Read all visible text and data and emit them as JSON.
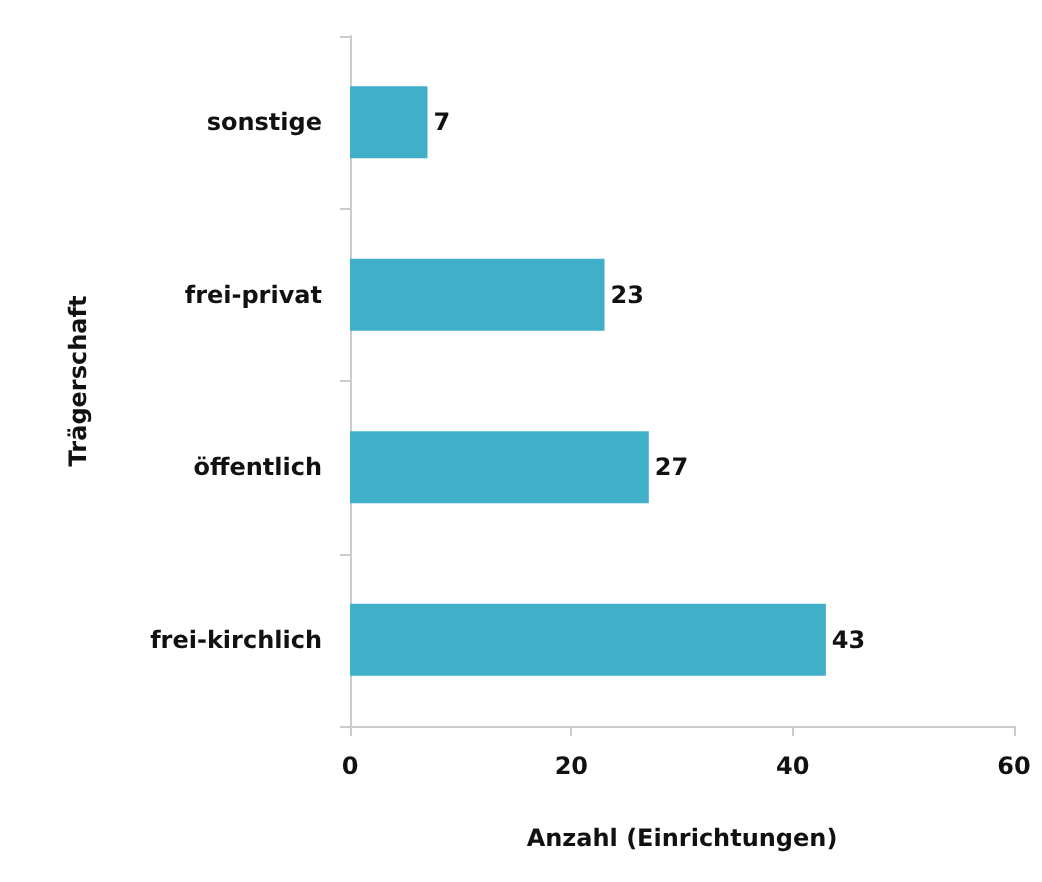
{
  "chart_data": {
    "type": "bar",
    "orientation": "horizontal",
    "xlabel": "Anzahl (Einrichtungen)",
    "ylabel": "Trägerschaft",
    "categories": [
      "sonstige",
      "frei-privat",
      "öffentlich",
      "frei-kirchlich"
    ],
    "values": [
      7,
      23,
      27,
      43
    ],
    "color": "#3fb0c8",
    "data_labels": true,
    "xlim": [
      0,
      60
    ],
    "xticks": [
      0,
      20,
      40,
      60
    ]
  }
}
